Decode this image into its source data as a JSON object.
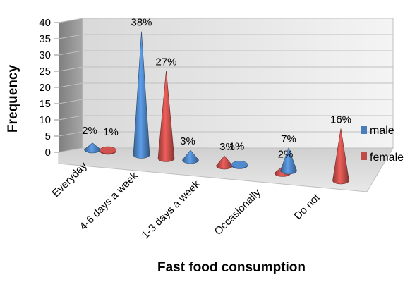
{
  "chart_data": {
    "type": "bar",
    "bar_shape": "cone",
    "three_d": true,
    "xlabel": "Fast food consumption",
    "ylabel": "Frequency",
    "ylim": [
      0,
      40
    ],
    "yticks": [
      0,
      5,
      10,
      15,
      20,
      25,
      30,
      35,
      40
    ],
    "grid": true,
    "legend_position": "right",
    "categories": [
      "Everyday",
      "4-6 days a week",
      "1-3 days a week",
      "Occasionally",
      "Do not"
    ],
    "series": [
      {
        "name": "male",
        "color": "#4a7ebb",
        "values": [
          2,
          38,
          3,
          1,
          7
        ],
        "labels": [
          "2%",
          "38%",
          "3%",
          "1%",
          "7%"
        ]
      },
      {
        "name": "female",
        "color": "#be4b48",
        "values": [
          1,
          27,
          3,
          2,
          16
        ],
        "labels": [
          "1%",
          "27%",
          "3%",
          "2%",
          "16%"
        ]
      }
    ]
  }
}
